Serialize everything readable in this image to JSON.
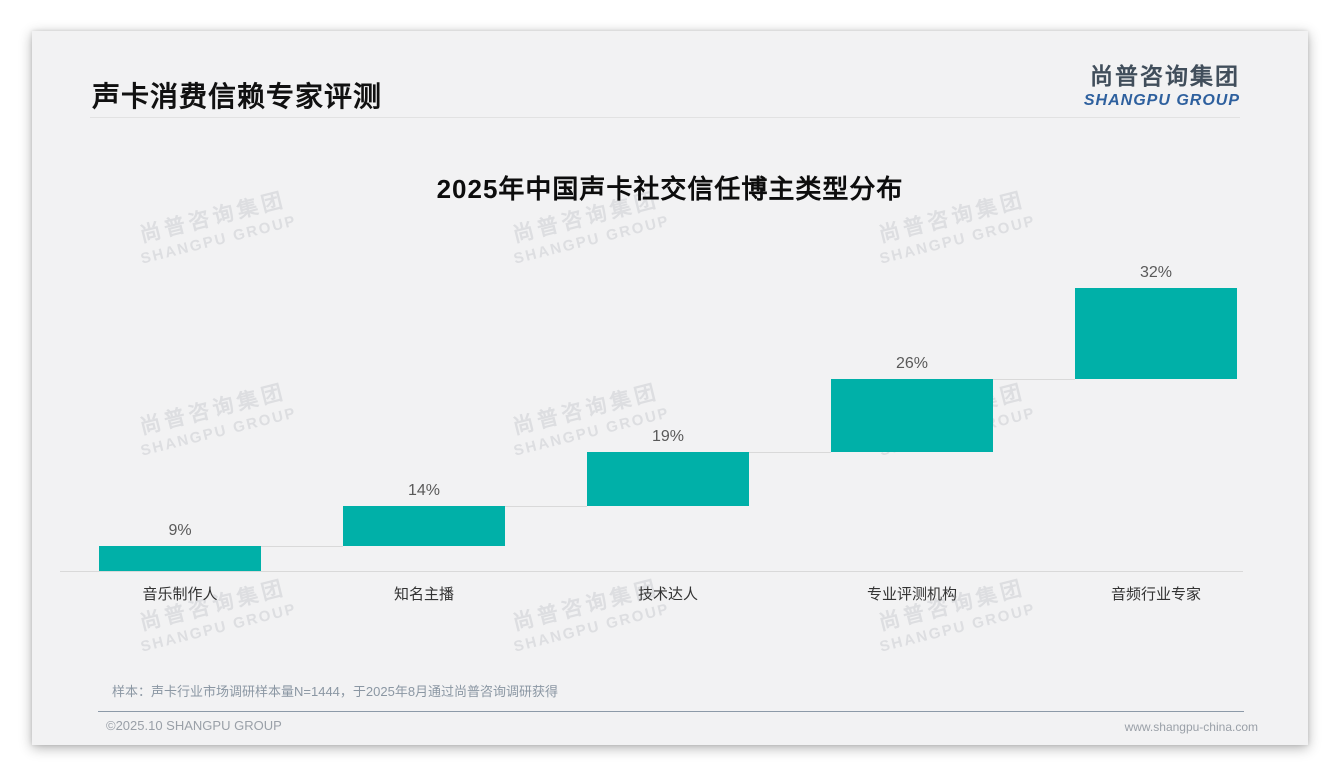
{
  "page": {
    "header": {
      "title": "声卡消费信赖专家评测"
    },
    "logo": {
      "zh": "尚普咨询集团",
      "en": "SHANGPU GROUP"
    },
    "watermark": {
      "line1": "尚普咨询集团",
      "line2": "SHANGPU GROUP"
    },
    "footnote": "样本：声卡行业市场调研样本量N=1444，于2025年8月通过尚普咨询调研获得",
    "footer": {
      "left": "©2025.10 SHANGPU GROUP",
      "right": "www.shangpu-china.com"
    }
  },
  "chart_data": {
    "type": "bar",
    "subtype": "stepped-waterfall",
    "title": "2025年中国声卡社交信任博主类型分布",
    "categories": [
      "音乐制作人",
      "知名主播",
      "技术达人",
      "专业评测机构",
      "音频行业专家"
    ],
    "values": [
      9,
      14,
      19,
      26,
      32
    ],
    "value_labels": [
      "9%",
      "14%",
      "19%",
      "26%",
      "32%"
    ],
    "unit": "%",
    "cumulative_total": 100,
    "ylim": [
      0,
      100
    ],
    "grid": false,
    "legend": false,
    "xlabel": "",
    "ylabel": "",
    "bar_color": "#00b0a8",
    "value_label_color": "#595959",
    "category_label_color": "#333333",
    "axis_line_color": "#d9d9d9"
  },
  "colors": {
    "card_background": "#f2f2f3",
    "page_background": "#ffffff",
    "accent_teal": "#00b0a8",
    "logo_blue": "#2e609e",
    "footer_divider": "#8d9aa8"
  }
}
